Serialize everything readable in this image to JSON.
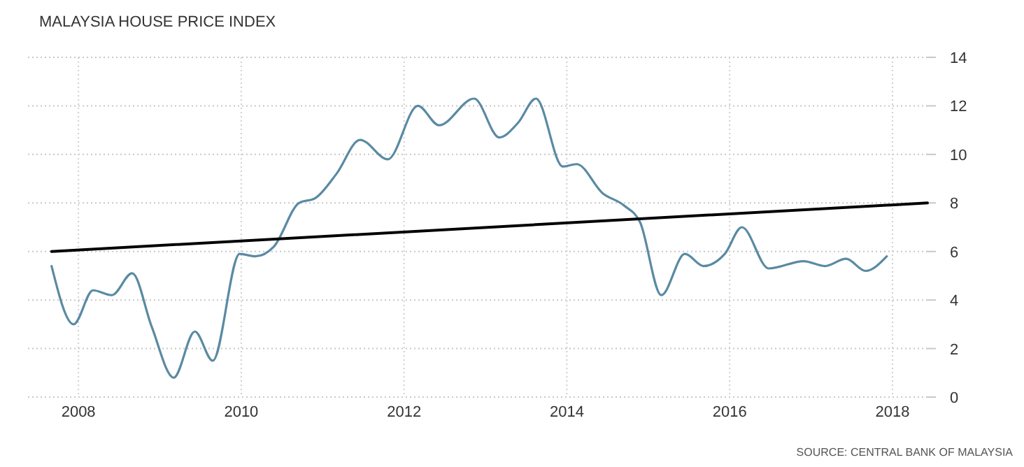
{
  "chart_data": {
    "type": "line",
    "title": "MALAYSIA HOUSE PRICE INDEX",
    "annotations": [
      "SOURCE: CENTRAL BANK OF MALAYSIA"
    ],
    "xlim": [
      2007.38,
      2018.43
    ],
    "xticks": [
      2008,
      2010,
      2012,
      2014,
      2016,
      2018
    ],
    "ylim": [
      0,
      14
    ],
    "yticks": [
      0,
      2,
      4,
      6,
      8,
      10,
      12,
      14
    ],
    "grid": true,
    "series": [
      {
        "color": "#5a8aa2",
        "x": [
          2007.67,
          2007.94,
          2008.18,
          2008.41,
          2008.66,
          2008.9,
          2009.17,
          2009.43,
          2009.65,
          2009.98,
          2010.17,
          2010.4,
          2010.71,
          2010.91,
          2011.17,
          2011.46,
          2011.8,
          2012.17,
          2012.43,
          2012.86,
          2013.17,
          2013.4,
          2013.62,
          2013.95,
          2014.12,
          2014.44,
          2014.7,
          2014.9,
          2015.16,
          2015.45,
          2015.68,
          2015.94,
          2016.15,
          2016.48,
          2016.91,
          2017.17,
          2017.43,
          2017.67,
          2017.93
        ],
        "values": [
          5.4,
          3,
          4.4,
          4.2,
          5.1,
          2.9,
          0.8,
          2.7,
          1.5,
          5.9,
          5.8,
          6.2,
          8,
          8.2,
          9.2,
          10.6,
          9.8,
          12,
          11.2,
          12.3,
          10.7,
          11.3,
          12.3,
          9.5,
          9.6,
          8.4,
          7.9,
          7.2,
          4.2,
          5.9,
          5.4,
          5.9,
          7,
          5.3,
          5.6,
          5.4,
          5.7,
          5.2,
          5.8
        ]
      },
      {
        "type": "line",
        "color": "#000000",
        "x": [
          2007.67,
          2018.43
        ],
        "values": [
          6,
          8
        ]
      }
    ]
  }
}
